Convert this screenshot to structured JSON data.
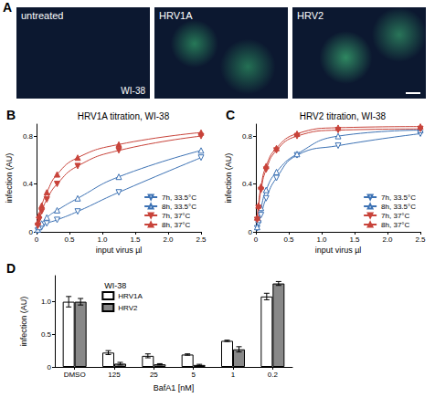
{
  "image_panel": {
    "panel": "A",
    "labels": [
      "untreated",
      "HRV1A",
      "HRV2"
    ],
    "cell_line": "WI-38"
  },
  "chart_data": [
    {
      "panel": "B",
      "type": "line",
      "title": "HRV1A titration, WI-38",
      "x_label": "input virus µl",
      "y_label": "infection (AU)",
      "xlim": [
        0,
        2.5
      ],
      "xticks": [
        0,
        0.5,
        {
          "value": 1,
          "label": "1.0"
        },
        1.5,
        {
          "value": 2,
          "label": "2.0"
        },
        2.5
      ],
      "ylim": [
        0,
        0.9
      ],
      "yticks": [
        0,
        0.4,
        0.8
      ],
      "grid": false,
      "legend": "lower right",
      "x": [
        0.0195,
        0.039,
        0.078,
        0.156,
        0.3125,
        0.625,
        1.25,
        2.5
      ],
      "series": [
        {
          "name": "7h, 33.5°C",
          "color": "#3d72b4",
          "marker": "triangle-down-open",
          "values": [
            0.01,
            0.02,
            0.04,
            0.07,
            0.1,
            0.17,
            0.33,
            0.62
          ]
        },
        {
          "name": "8h, 33.5°C",
          "color": "#3d72b4",
          "marker": "triangle-up-open",
          "values": [
            0.02,
            0.04,
            0.07,
            0.12,
            0.18,
            0.28,
            0.46,
            0.68
          ]
        },
        {
          "name": "7h, 37°C",
          "color": "#c8433a",
          "marker": "triangle-down-filled",
          "values": [
            0.05,
            0.1,
            0.17,
            0.27,
            0.4,
            0.55,
            0.68,
            0.8
          ]
        },
        {
          "name": "8h, 37°C",
          "color": "#c8433a",
          "marker": "triangle-up-filled",
          "values": [
            0.08,
            0.14,
            0.22,
            0.33,
            0.48,
            0.62,
            0.73,
            0.83
          ]
        }
      ]
    },
    {
      "panel": "C",
      "type": "line",
      "title": "HRV2 titration, WI-38",
      "x_label": "input virus µl",
      "y_label": "infection (AU)",
      "xlim": [
        0,
        2.5
      ],
      "xticks": [
        0,
        0.5,
        {
          "value": 1,
          "label": "1.0"
        },
        1.5,
        {
          "value": 2,
          "label": "2.0"
        },
        2.5
      ],
      "ylim": [
        0,
        0.9
      ],
      "yticks": [
        0,
        0.4,
        0.8
      ],
      "grid": false,
      "legend": "lower right",
      "x": [
        0.0195,
        0.039,
        0.078,
        0.156,
        0.3125,
        0.625,
        1.25,
        2.5
      ],
      "series": [
        {
          "name": "7h, 33.5°C",
          "color": "#3d72b4",
          "marker": "triangle-down-open",
          "values": [
            0.03,
            0.07,
            0.14,
            0.28,
            0.45,
            0.64,
            0.72,
            0.82
          ]
        },
        {
          "name": "8h, 33.5°C",
          "color": "#3d72b4",
          "marker": "triangle-up-open",
          "values": [
            0.04,
            0.1,
            0.2,
            0.35,
            0.5,
            0.65,
            0.8,
            0.85
          ]
        },
        {
          "name": "7h, 37°C",
          "color": "#c8433a",
          "marker": "triangle-down-filled",
          "values": [
            0.1,
            0.2,
            0.35,
            0.52,
            0.68,
            0.8,
            0.85,
            0.86
          ]
        },
        {
          "name": "8h, 37°C",
          "color": "#c8433a",
          "marker": "triangle-up-filled",
          "values": [
            0.12,
            0.22,
            0.38,
            0.55,
            0.7,
            0.82,
            0.87,
            0.88
          ]
        }
      ]
    },
    {
      "panel": "D",
      "type": "bar",
      "title": "WI-38",
      "x_label": "BafA1 [nM]",
      "y_label": "infection (AU)",
      "categories": [
        "DMSO",
        "125",
        "25",
        "5",
        "1",
        "0.2"
      ],
      "ylim": [
        0,
        1.4
      ],
      "yticks": [
        0,
        0.5,
        {
          "value": 1,
          "label": "1.0"
        }
      ],
      "grid": false,
      "legend": "upper left",
      "series": [
        {
          "name": "HRV1A",
          "color": "#ffffff",
          "values": [
            1.0,
            0.22,
            0.17,
            0.19,
            0.4,
            1.08
          ],
          "errors": [
            0.08,
            0.03,
            0.03,
            0.01,
            0.01,
            0.05
          ]
        },
        {
          "name": "HRV2",
          "color": "#888888",
          "values": [
            1.0,
            0.05,
            0.04,
            0.03,
            0.27,
            1.28
          ],
          "errors": [
            0.05,
            0.02,
            0.01,
            0.01,
            0.04,
            0.03
          ]
        }
      ]
    }
  ]
}
